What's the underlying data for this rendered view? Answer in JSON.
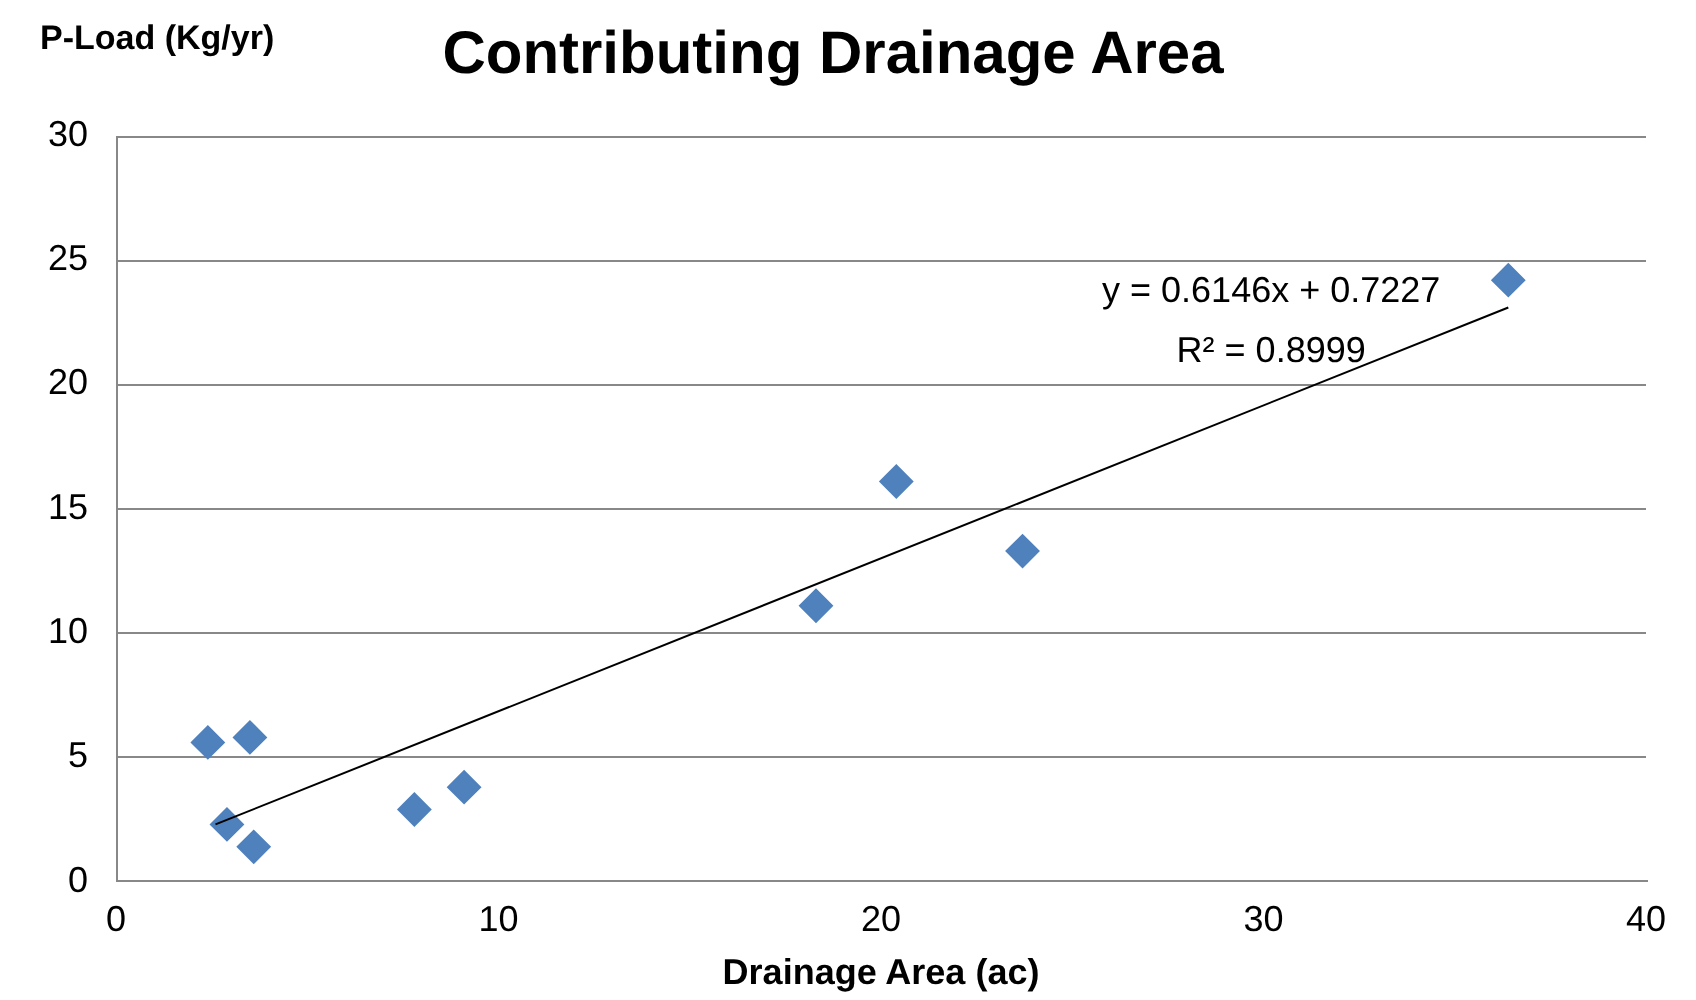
{
  "chart_data": {
    "type": "scatter",
    "title": "Contributing Drainage Area",
    "xlabel": "Drainage Area (ac)",
    "ylabel": "P-Load (Kg/yr)",
    "annotations": [
      "y = 0.6146x + 0.7227",
      "R² = 0.8999"
    ],
    "series": [
      {
        "color": "#4f81bd",
        "x": [
          2.4,
          3.5,
          2.9,
          3.6,
          7.8,
          9.1,
          18.3,
          20.4,
          23.7,
          36.4
        ],
        "values": [
          5.6,
          5.8,
          2.3,
          1.4,
          2.9,
          3.8,
          11.1,
          16.1,
          13.3,
          24.2
        ]
      },
      {
        "type": "line",
        "marker": "none",
        "color": "#000000",
        "x": [
          2.6,
          36.4
        ],
        "values": [
          2.3,
          23.1
        ]
      }
    ],
    "marker": "diamond",
    "xlim": [
      0,
      40
    ],
    "xticks": [
      0,
      10,
      20,
      30,
      40
    ],
    "ylim": [
      0,
      30
    ],
    "yticks": [
      0,
      5,
      10,
      15,
      20,
      25,
      30
    ],
    "grid": "y",
    "legend": false
  }
}
